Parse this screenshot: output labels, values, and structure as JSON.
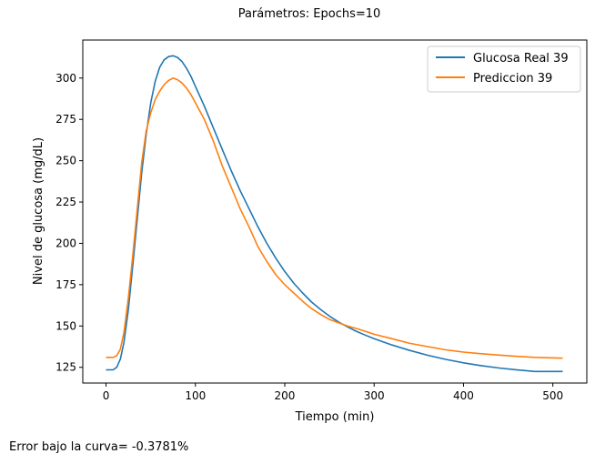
{
  "figure": {
    "suptitle": "Parámetros:  Epochs=10",
    "footer": "Error bajo la curva= -0.3781%"
  },
  "chart_data": {
    "type": "line",
    "xlabel": "Tiempo (min)",
    "ylabel": "Nivel de glucosa (mg/dL)",
    "xlim": [
      -26,
      538
    ],
    "ylim": [
      115.5,
      323
    ],
    "xticks": [
      0,
      100,
      200,
      300,
      400,
      500
    ],
    "yticks": [
      125,
      150,
      175,
      200,
      225,
      250,
      275,
      300
    ],
    "grid": false,
    "legend": "top-right",
    "series": [
      {
        "name": "Glucosa Real 39",
        "color": "#1f77b4",
        "x": [
          0,
          8,
          12,
          16,
          20,
          25,
          30,
          35,
          40,
          45,
          50,
          55,
          60,
          65,
          70,
          75,
          80,
          85,
          90,
          95,
          100,
          110,
          120,
          130,
          140,
          150,
          160,
          170,
          180,
          190,
          200,
          210,
          220,
          230,
          240,
          250,
          260,
          270,
          280,
          290,
          300,
          320,
          340,
          360,
          380,
          400,
          420,
          440,
          460,
          480,
          511
        ],
        "values": [
          123.5,
          123.5,
          125,
          130,
          140,
          160,
          187,
          215,
          243,
          266,
          285,
          298,
          306.5,
          311,
          313,
          313.5,
          312.5,
          310,
          306,
          301,
          295,
          283,
          270,
          257,
          244,
          232,
          221,
          210,
          200,
          191,
          183,
          176,
          170,
          164.5,
          160,
          156,
          152.5,
          149.5,
          146.8,
          144.5,
          142.3,
          138.5,
          135.2,
          132.3,
          129.8,
          127.7,
          126,
          124.6,
          123.4,
          122.5,
          122.5
        ]
      },
      {
        "name": "Prediccion 39",
        "color": "#ff7f0e",
        "x": [
          0,
          8,
          12,
          16,
          20,
          25,
          30,
          35,
          40,
          45,
          50,
          55,
          60,
          65,
          70,
          75,
          80,
          85,
          90,
          95,
          100,
          110,
          120,
          130,
          140,
          150,
          160,
          170,
          180,
          190,
          200,
          210,
          220,
          230,
          240,
          250,
          260,
          270,
          280,
          290,
          300,
          320,
          340,
          360,
          380,
          400,
          420,
          440,
          460,
          480,
          511
        ],
        "values": [
          131,
          131,
          132,
          136,
          146,
          167,
          193,
          221,
          249,
          268,
          279,
          287,
          292,
          296,
          298.5,
          300,
          299,
          297,
          294,
          290,
          285,
          275,
          262,
          247,
          234,
          221,
          210,
          198,
          189,
          181,
          175,
          170,
          165,
          160.5,
          157,
          154,
          152,
          150,
          148.5,
          146.8,
          145,
          142.3,
          139.5,
          137.5,
          135.6,
          134.2,
          133.2,
          132.4,
          131.6,
          131,
          130.5
        ]
      }
    ]
  }
}
